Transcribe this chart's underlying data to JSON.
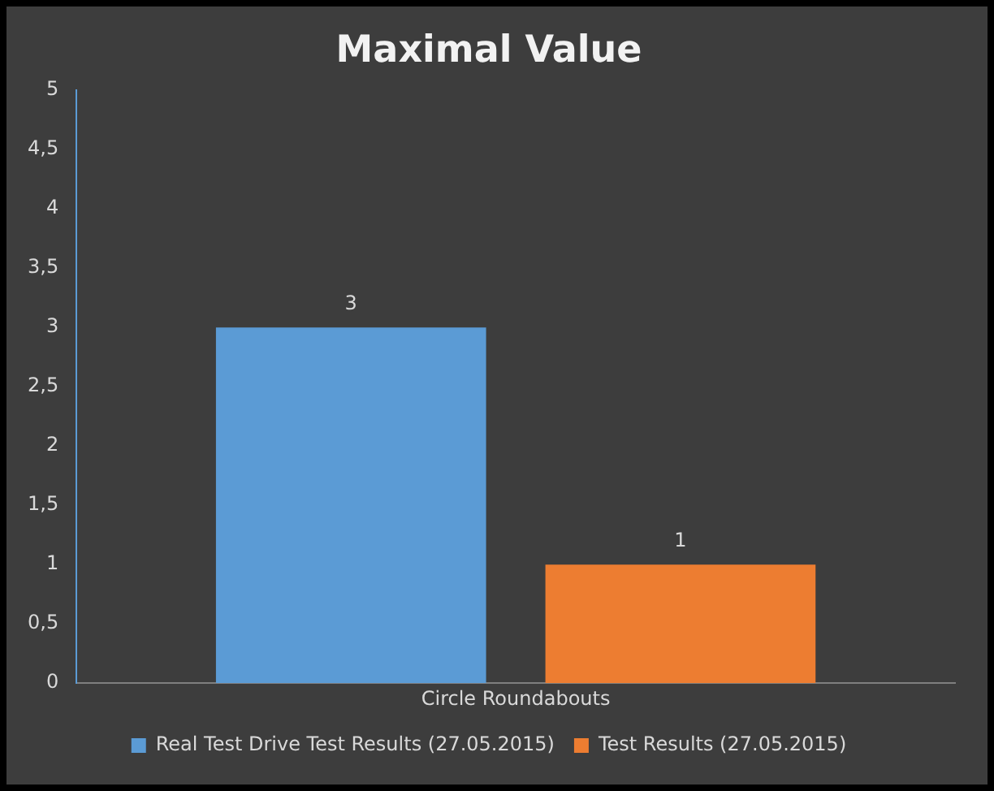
{
  "chart_data": {
    "type": "bar",
    "title": "Maximal Value",
    "categories": [
      "Circle Roundabouts"
    ],
    "series": [
      {
        "name": "Real Test Drive Test Results (27.05.2015)",
        "color": "#5b9bd5",
        "values": [
          3
        ]
      },
      {
        "name": "Test Results (27.05.2015)",
        "color": "#ed7d31",
        "values": [
          1
        ]
      }
    ],
    "ylim": [
      0,
      5
    ],
    "yticks": [
      0,
      {
        "value": 0.5,
        "label": "0,5"
      },
      1,
      {
        "value": 1.5,
        "label": "1,5"
      },
      2,
      {
        "value": 2.5,
        "label": "2,5"
      },
      3,
      {
        "value": 3.5,
        "label": "3,5"
      },
      4,
      {
        "value": 4.5,
        "label": "4,5"
      },
      5
    ],
    "grid": false,
    "legend": "bottom",
    "data_labels": true
  }
}
